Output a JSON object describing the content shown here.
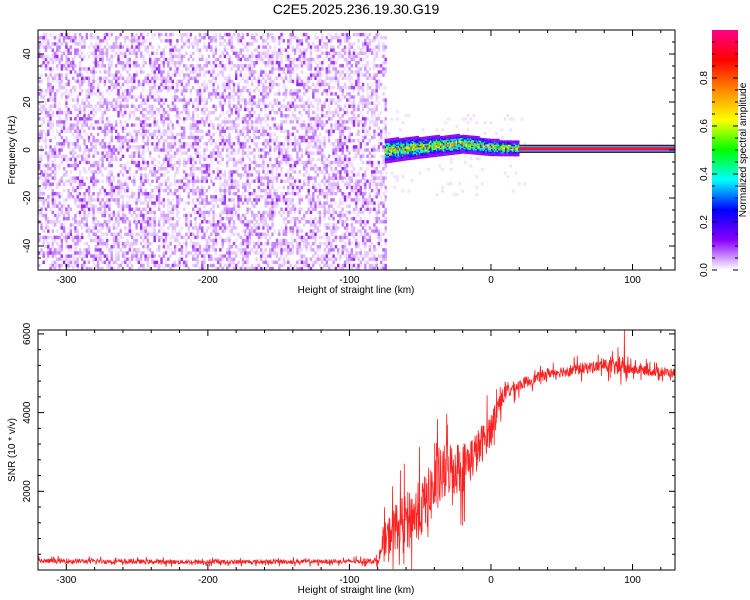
{
  "title": "C2E5.2025.236.19.30.G19",
  "chart_data": [
    {
      "type": "heatmap",
      "title": "C2E5.2025.236.19.30.G19",
      "xlabel": "Height of straight line (km)",
      "ylabel": "Frequency (Hz)",
      "xlim": [
        -320,
        130
      ],
      "ylim": [
        -50,
        50
      ],
      "x_ticks": [
        -300,
        -200,
        -100,
        0,
        100
      ],
      "x_tick_labels": [
        "-300",
        "-200",
        "-100",
        "0",
        "100"
      ],
      "y_ticks": [
        -40,
        -20,
        0,
        20,
        40
      ],
      "y_tick_labels": [
        "-40",
        "-20",
        "0",
        "20",
        "40"
      ],
      "colorbar": {
        "label": "Normalized spectral amplitude",
        "range": [
          0,
          1
        ],
        "ticks": [
          0,
          0.2,
          0.4,
          0.6,
          0.8
        ],
        "tick_labels": [
          "0.0",
          "0.2",
          "0.4",
          "0.6",
          "0.8"
        ],
        "colormap": [
          "#ffffff",
          "#8800ff",
          "#0000ff",
          "#00ffff",
          "#00ff00",
          "#ffff00",
          "#ff8800",
          "#ff0000",
          "#ff0088"
        ]
      },
      "regions": [
        {
          "name": "noise",
          "x_range": [
            -320,
            -75
          ],
          "freq_range": [
            -50,
            48
          ],
          "amplitude": [
            0.02,
            0.12
          ]
        },
        {
          "name": "transition",
          "x_range": [
            -75,
            20
          ],
          "center_freq": [
            [
              -75,
              0
            ],
            [
              -60,
              1
            ],
            [
              -40,
              2
            ],
            [
              -20,
              3
            ],
            [
              0,
              1.5
            ],
            [
              20,
              1
            ]
          ],
          "width_hz": [
            5,
            3
          ],
          "amplitude": [
            0.3,
            0.95
          ]
        },
        {
          "name": "tone",
          "x_range": [
            20,
            130
          ],
          "center_freq": 0.5,
          "width_hz": 3,
          "amplitude": [
            0.8,
            1.0
          ]
        }
      ],
      "grid": false
    },
    {
      "type": "line",
      "xlabel": "Height of straight line (km)",
      "ylabel": "SNR (10 * v/v)",
      "xlim": [
        -320,
        130
      ],
      "ylim": [
        0,
        6100
      ],
      "x_ticks": [
        -300,
        -200,
        -100,
        0,
        100
      ],
      "x_tick_labels": [
        "-300",
        "-200",
        "-100",
        "0",
        "100"
      ],
      "y_ticks": [
        2000,
        4000,
        6000
      ],
      "y_tick_labels": [
        "2000",
        "4000",
        "6000"
      ],
      "color": "#ff2020",
      "envelope": {
        "x": [
          -320,
          -200,
          -100,
          -80,
          -75,
          -70,
          -60,
          -50,
          -40,
          -30,
          -20,
          -10,
          0,
          5,
          10,
          20,
          30,
          40,
          60,
          80,
          90,
          100,
          130
        ],
        "mean": [
          230,
          200,
          220,
          230,
          700,
          1000,
          1300,
          1500,
          2100,
          2600,
          2600,
          3000,
          3600,
          4200,
          4500,
          4700,
          4850,
          5000,
          5100,
          5200,
          5150,
          5100,
          5000
        ],
        "spread": [
          100,
          90,
          90,
          120,
          800,
          900,
          1100,
          1200,
          1300,
          1200,
          1100,
          900,
          700,
          500,
          350,
          250,
          220,
          220,
          250,
          250,
          400,
          220,
          200
        ]
      },
      "grid": false
    }
  ]
}
